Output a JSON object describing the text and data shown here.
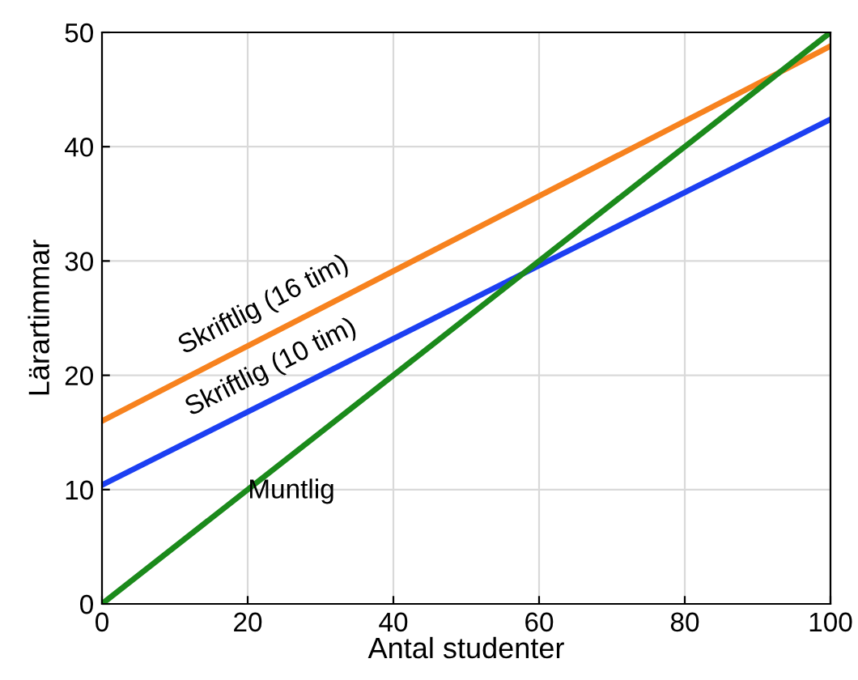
{
  "chart_data": {
    "type": "line",
    "xlabel": "Antal studenter",
    "ylabel": "Lärartimmar",
    "x": [
      0,
      100
    ],
    "series": [
      {
        "name": "Skriftlig (16 tim)",
        "color": "#f7821e",
        "values": [
          16,
          48.8
        ]
      },
      {
        "name": "Skriftlig (10 tim)",
        "color": "#1c3ff2",
        "values": [
          10.4,
          42.4
        ]
      },
      {
        "name": "Muntlig",
        "color": "#1b8a1b",
        "values": [
          0,
          50
        ]
      }
    ],
    "xlim": [
      0,
      100
    ],
    "ylim": [
      0,
      50
    ],
    "xticks": [
      0,
      20,
      40,
      60,
      80,
      100
    ],
    "yticks": [
      0,
      10,
      20,
      30,
      40,
      50
    ],
    "grid": true,
    "legend": false,
    "marker": "none",
    "line_style": "solid"
  }
}
